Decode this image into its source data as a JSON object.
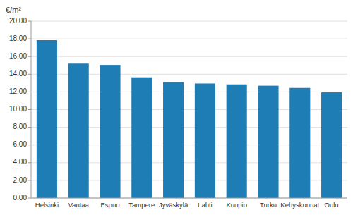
{
  "chart_data": {
    "type": "bar",
    "ylabel": "€/m²",
    "categories": [
      "Helsinki",
      "Vantaa",
      "Espoo",
      "Tampere",
      "Jyväskylä",
      "Lahti",
      "Kuopio",
      "Turku",
      "Kehyskunnat",
      "Oulu"
    ],
    "values": [
      17.85,
      15.2,
      15.05,
      13.65,
      13.1,
      12.95,
      12.85,
      12.7,
      12.45,
      11.95
    ],
    "color": "#1f7db5",
    "ylim": [
      0,
      20.0
    ],
    "yticks": [
      {
        "value": 0.0,
        "label": "0.00"
      },
      {
        "value": 2.0,
        "label": "2.00"
      },
      {
        "value": 4.0,
        "label": "4.00"
      },
      {
        "value": 6.0,
        "label": "6.00"
      },
      {
        "value": 8.0,
        "label": "8.00"
      },
      {
        "value": 10.0,
        "label": "10.00"
      },
      {
        "value": 12.0,
        "label": "12.00"
      },
      {
        "value": 14.0,
        "label": "14.00"
      },
      {
        "value": 16.0,
        "label": "16.00"
      },
      {
        "value": 18.0,
        "label": "18.00"
      },
      {
        "value": 20.0,
        "label": "20.00"
      }
    ],
    "grid": true
  }
}
